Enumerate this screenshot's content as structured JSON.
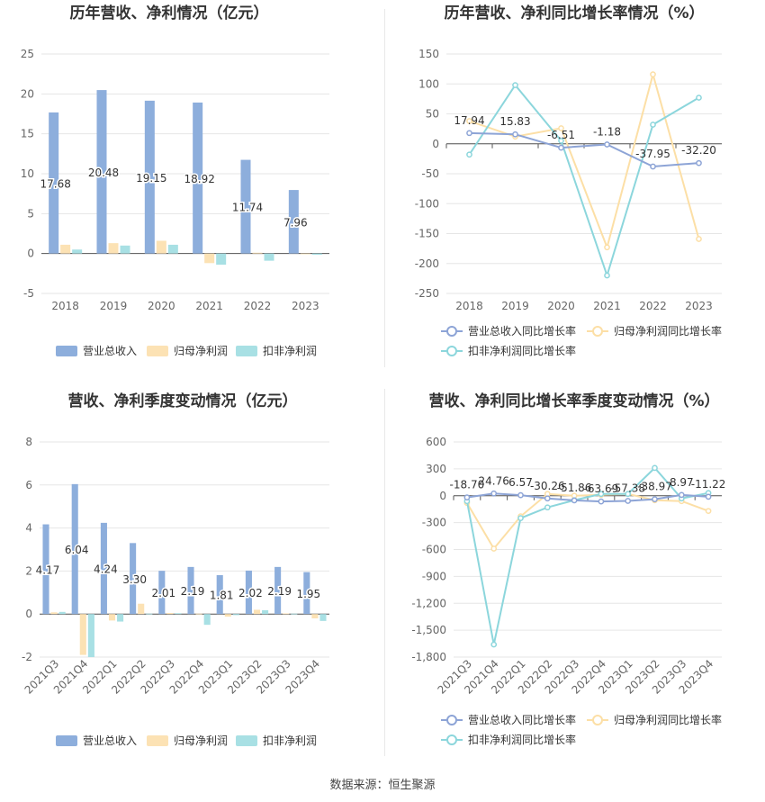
{
  "colors": {
    "revenue": "#8DAEDC",
    "net_profit": "#FCE2B4",
    "deducted_profit": "#A8E0E4",
    "rev_growth_line": "#8DA4D6",
    "np_growth_line": "#FCDFA6",
    "dp_growth_line": "#8CD6DC"
  },
  "legends": {
    "bar": [
      "营业总收入",
      "归母净利润",
      "扣非净利润"
    ],
    "line": [
      "营业总收入同比增长率",
      "归母净利润同比增长率",
      "扣非净利润同比增长率"
    ]
  },
  "source": "数据来源：恒生聚源",
  "chart_data": [
    {
      "id": "annual-bar",
      "type": "bar",
      "title": "历年营收、净利情况（亿元）",
      "categories": [
        "2018",
        "2019",
        "2020",
        "2021",
        "2022",
        "2023"
      ],
      "ylim": [
        -5,
        25
      ],
      "yticks": [
        "-5",
        "0",
        "5",
        "10",
        "15",
        "20",
        "25"
      ],
      "legend_position": "bottom",
      "series": [
        {
          "name": "营业总收入",
          "values": [
            17.68,
            20.48,
            19.15,
            18.92,
            11.74,
            7.96
          ],
          "labels": [
            "17.68",
            "20.48",
            "19.15",
            "18.92",
            "11.74",
            "7.96"
          ]
        },
        {
          "name": "归母净利润",
          "values": [
            1.1,
            1.3,
            1.6,
            -1.2,
            0.1,
            -0.05
          ]
        },
        {
          "name": "扣非净利润",
          "values": [
            0.5,
            1.0,
            1.1,
            -1.4,
            -0.9,
            -0.15
          ]
        }
      ]
    },
    {
      "id": "annual-line",
      "type": "line",
      "title": "历年营收、净利同比增长率情况（%）",
      "categories": [
        "2018",
        "2019",
        "2020",
        "2021",
        "2022",
        "2023"
      ],
      "ylim": [
        -250,
        150
      ],
      "yticks": [
        "-250",
        "-200",
        "-150",
        "-100",
        "-50",
        "0",
        "50",
        "100",
        "150"
      ],
      "legend_position": "bottom",
      "series": [
        {
          "name": "营业总收入同比增长率",
          "values": [
            17.94,
            15.83,
            -6.51,
            -1.18,
            -37.95,
            -32.2
          ],
          "labels": [
            "17.94",
            "15.83",
            "-6.51",
            "-1.18",
            "-37.95",
            "-32.20"
          ]
        },
        {
          "name": "归母净利润同比增长率",
          "values": [
            38,
            12,
            26,
            -173,
            116,
            -159
          ]
        },
        {
          "name": "扣非净利润同比增长率",
          "values": [
            -18,
            98,
            5,
            -220,
            32,
            77
          ]
        }
      ]
    },
    {
      "id": "quarter-bar",
      "type": "bar",
      "title": "营收、净利季度变动情况（亿元）",
      "categories": [
        "2021Q3",
        "2021Q4",
        "2022Q1",
        "2022Q2",
        "2022Q3",
        "2022Q4",
        "2023Q1",
        "2023Q2",
        "2023Q3",
        "2023Q4"
      ],
      "ylim": [
        -2,
        8
      ],
      "yticks": [
        "-2",
        "0",
        "2",
        "4",
        "6",
        "8"
      ],
      "legend_position": "bottom",
      "series": [
        {
          "name": "营业总收入",
          "values": [
            4.17,
            6.04,
            4.24,
            3.3,
            2.01,
            2.19,
            1.81,
            2.02,
            2.19,
            1.95
          ],
          "labels": [
            "4.17",
            "6.04",
            "4.24",
            "3.30",
            "2.01",
            "2.19",
            "1.81",
            "2.02",
            "2.19",
            "1.95"
          ]
        },
        {
          "name": "归母净利润",
          "values": [
            0.08,
            -1.9,
            -0.3,
            0.48,
            0.05,
            0.02,
            -0.12,
            0.2,
            0.03,
            -0.2
          ]
        },
        {
          "name": "扣非净利润",
          "values": [
            0.1,
            -2.0,
            -0.35,
            0.02,
            0.04,
            -0.5,
            -0.05,
            0.18,
            0.02,
            -0.32
          ]
        }
      ]
    },
    {
      "id": "quarter-line",
      "type": "line",
      "title": "营收、净利同比增长率季度变动情况（%）",
      "categories": [
        "2021Q3",
        "2021Q4",
        "2022Q1",
        "2022Q2",
        "2022Q3",
        "2022Q4",
        "2023Q1",
        "2023Q2",
        "2023Q3",
        "2023Q4"
      ],
      "ylim": [
        -1800,
        600
      ],
      "yticks": [
        "-1,800",
        "-1,500",
        "-1,200",
        "-900",
        "-600",
        "-300",
        "0",
        "300",
        "600"
      ],
      "legend_position": "bottom",
      "series": [
        {
          "name": "营业总收入同比增长率",
          "values": [
            -18.7,
            24.76,
            6.57,
            -30.26,
            -51.86,
            -63.69,
            -57.38,
            -38.97,
            8.97,
            -11.22
          ],
          "labels": [
            "-18.70",
            "24.76",
            "6.57",
            "-30.26",
            "-51.86",
            "-63.69",
            "-57.38",
            "-38.97",
            "8.97",
            "-11.22"
          ]
        },
        {
          "name": "归母净利润同比增长率",
          "values": [
            -80,
            -590,
            -230,
            20,
            0,
            10,
            20,
            -50,
            -60,
            -170
          ]
        },
        {
          "name": "扣非净利润同比增长率",
          "values": [
            -60,
            -1660,
            -250,
            -130,
            -50,
            20,
            20,
            310,
            -30,
            30
          ]
        }
      ]
    }
  ]
}
